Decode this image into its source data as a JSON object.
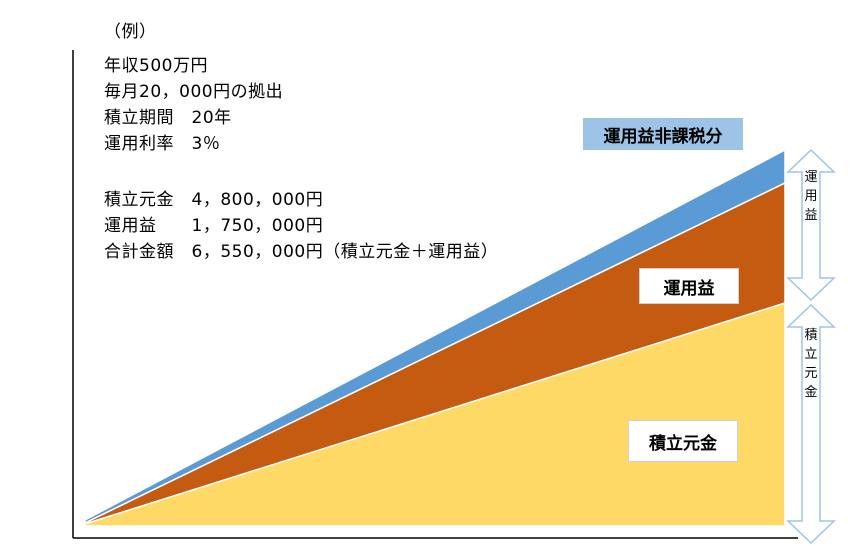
{
  "example": {
    "heading": "（例）",
    "lines": [
      "年収500万円",
      "毎月20，000円の拠出",
      "積立期間　20年",
      "運用利率　3％",
      "積立元金　4，800，000円",
      "運用益　　1，750，000円",
      "合計金額　6，550，000円（積立元金＋運用益）"
    ]
  },
  "labels": {
    "tax_free": "運用益非課税分",
    "gain": "運用益",
    "principal": "積立元金"
  },
  "arrows": {
    "gain": "運用益",
    "principal": "積立元金"
  },
  "colors": {
    "principal": "#FFD966",
    "gain": "#C55A11",
    "tax_free": "#5B9BD5",
    "tax_free_label_bg": "#9DC3E6",
    "arrow_outline": "#9DC3E6"
  }
}
